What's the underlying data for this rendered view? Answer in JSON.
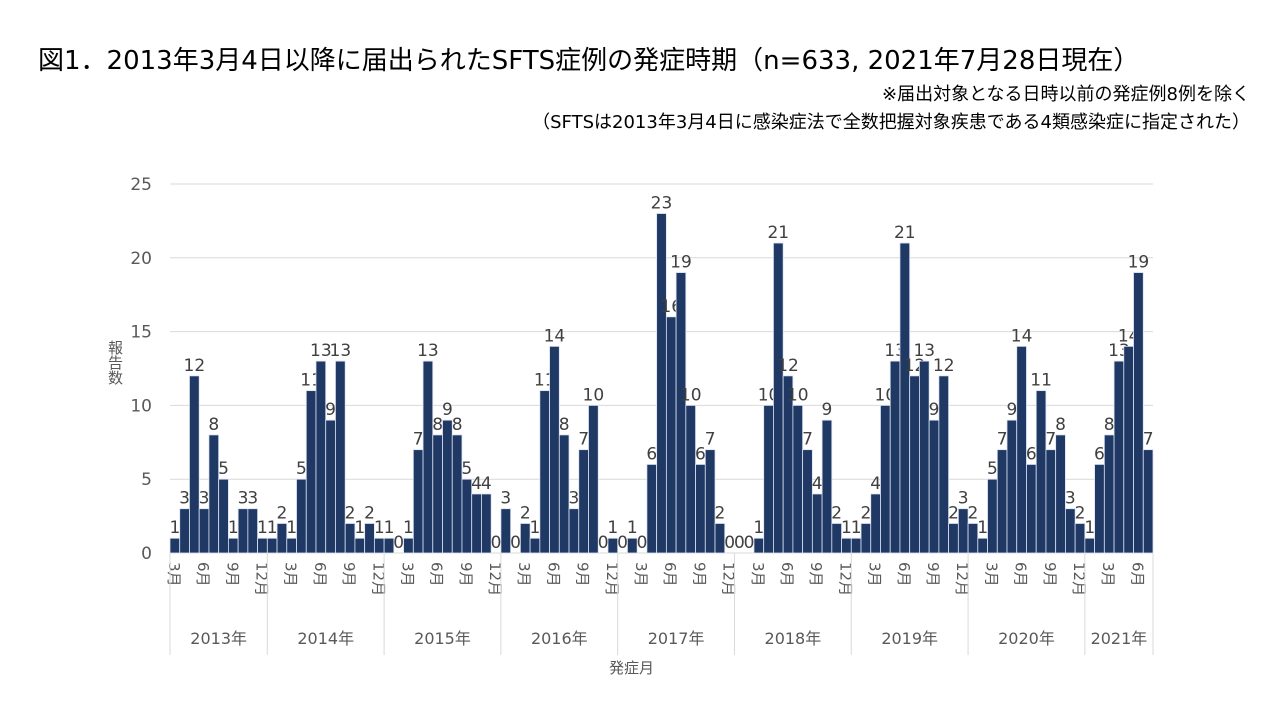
{
  "header": {
    "title": "図1．2013年3月4日以降に届出られたSFTS症例の発症時期（n=633, 2021年7月28日現在）",
    "note1": "※届出対象となる日時以前の発症例8例を除く",
    "note2": "（SFTSは2013年3月4日に感染症法で全数把握対象疾患である4類感染症に指定された）"
  },
  "colors": {
    "bar": "#203864",
    "grid": "#d9d9d9",
    "label": "#404040"
  },
  "chart_data": {
    "type": "bar",
    "title": "2013年3月4日以降に届出られたSFTS症例の発症時期",
    "xlabel": "発症月",
    "ylabel": "報告数",
    "ylim": [
      0,
      25
    ],
    "yticks": [
      0,
      5,
      10,
      15,
      20,
      25
    ],
    "grid": true,
    "month_tick_labels": {
      "3": "3月",
      "6": "6月",
      "9": "9月",
      "12": "12月"
    },
    "years": [
      {
        "label": "2013年",
        "start_month": 3,
        "values": [
          1,
          3,
          12,
          3,
          8,
          5,
          1,
          3,
          3,
          1
        ]
      },
      {
        "label": "2014年",
        "start_month": 1,
        "values": [
          1,
          2,
          1,
          5,
          11,
          13,
          9,
          13,
          2,
          1,
          2,
          1
        ]
      },
      {
        "label": "2015年",
        "start_month": 1,
        "values": [
          1,
          0,
          1,
          7,
          13,
          8,
          9,
          8,
          5,
          4,
          4,
          0
        ]
      },
      {
        "label": "2016年",
        "start_month": 1,
        "values": [
          3,
          0,
          2,
          1,
          11,
          14,
          8,
          3,
          7,
          10,
          0,
          1
        ]
      },
      {
        "label": "2017年",
        "start_month": 1,
        "values": [
          0,
          1,
          0,
          6,
          23,
          16,
          19,
          10,
          6,
          7,
          2,
          0
        ]
      },
      {
        "label": "2018年",
        "start_month": 1,
        "values": [
          0,
          0,
          1,
          10,
          21,
          12,
          10,
          7,
          4,
          9,
          2,
          1
        ]
      },
      {
        "label": "2019年",
        "start_month": 1,
        "values": [
          1,
          2,
          4,
          10,
          13,
          21,
          12,
          13,
          9,
          12,
          2,
          3
        ]
      },
      {
        "label": "2020年",
        "start_month": 1,
        "values": [
          2,
          1,
          5,
          7,
          9,
          14,
          6,
          11,
          7,
          8,
          3,
          2
        ]
      },
      {
        "label": "2021年",
        "start_month": 1,
        "values": [
          1,
          6,
          8,
          13,
          14,
          19,
          7
        ]
      }
    ]
  }
}
